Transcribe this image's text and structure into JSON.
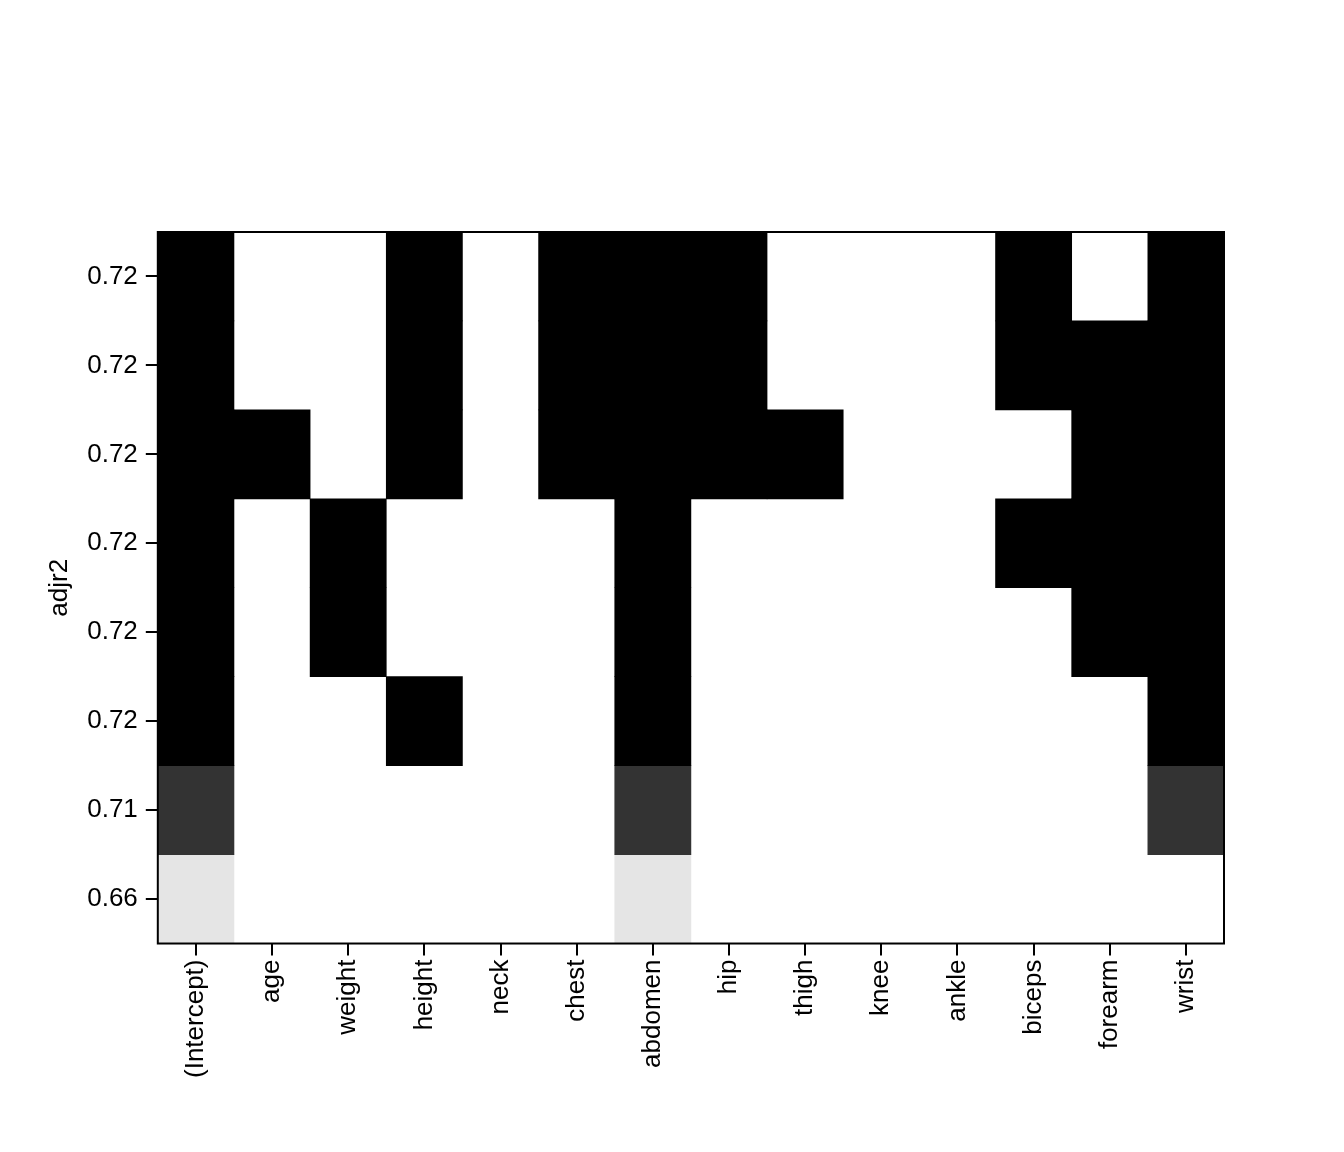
{
  "chart_data": {
    "type": "heatmap",
    "y_label": "adjr2",
    "categories": [
      "(Intercept)",
      "age",
      "weight",
      "height",
      "neck",
      "chest",
      "abdomen",
      "hip",
      "thigh",
      "knee",
      "ankle",
      "biceps",
      "forearm",
      "wrist"
    ],
    "rows": [
      {
        "adjr2": 0.72,
        "cells": [
          1,
          0,
          0,
          1,
          0,
          1,
          1,
          1,
          0,
          0,
          0,
          1,
          0,
          1
        ]
      },
      {
        "adjr2": 0.72,
        "cells": [
          1,
          0,
          0,
          1,
          0,
          1,
          1,
          1,
          0,
          0,
          0,
          1,
          1,
          1
        ]
      },
      {
        "adjr2": 0.72,
        "cells": [
          1,
          1,
          0,
          1,
          0,
          1,
          1,
          1,
          1,
          0,
          0,
          0,
          1,
          1
        ]
      },
      {
        "adjr2": 0.72,
        "cells": [
          1,
          0,
          1,
          0,
          0,
          0,
          1,
          0,
          0,
          0,
          0,
          1,
          1,
          1
        ]
      },
      {
        "adjr2": 0.72,
        "cells": [
          1,
          0,
          1,
          0,
          0,
          0,
          1,
          0,
          0,
          0,
          0,
          0,
          1,
          1
        ]
      },
      {
        "adjr2": 0.72,
        "cells": [
          1,
          0,
          0,
          1,
          0,
          0,
          1,
          0,
          0,
          0,
          0,
          0,
          0,
          1
        ]
      },
      {
        "adjr2": 0.71,
        "cells": [
          1,
          0,
          0,
          0,
          0,
          0,
          1,
          0,
          0,
          0,
          0,
          0,
          0,
          1
        ]
      },
      {
        "adjr2": 0.66,
        "cells": [
          1,
          0,
          0,
          0,
          0,
          0,
          1,
          0,
          0,
          0,
          0,
          0,
          0,
          0
        ]
      }
    ],
    "colors": [
      "#000000",
      "#000000",
      "#000000",
      "#000000",
      "#000000",
      "#000000",
      "#333333",
      "#e5e5e5"
    ],
    "grid": false
  }
}
